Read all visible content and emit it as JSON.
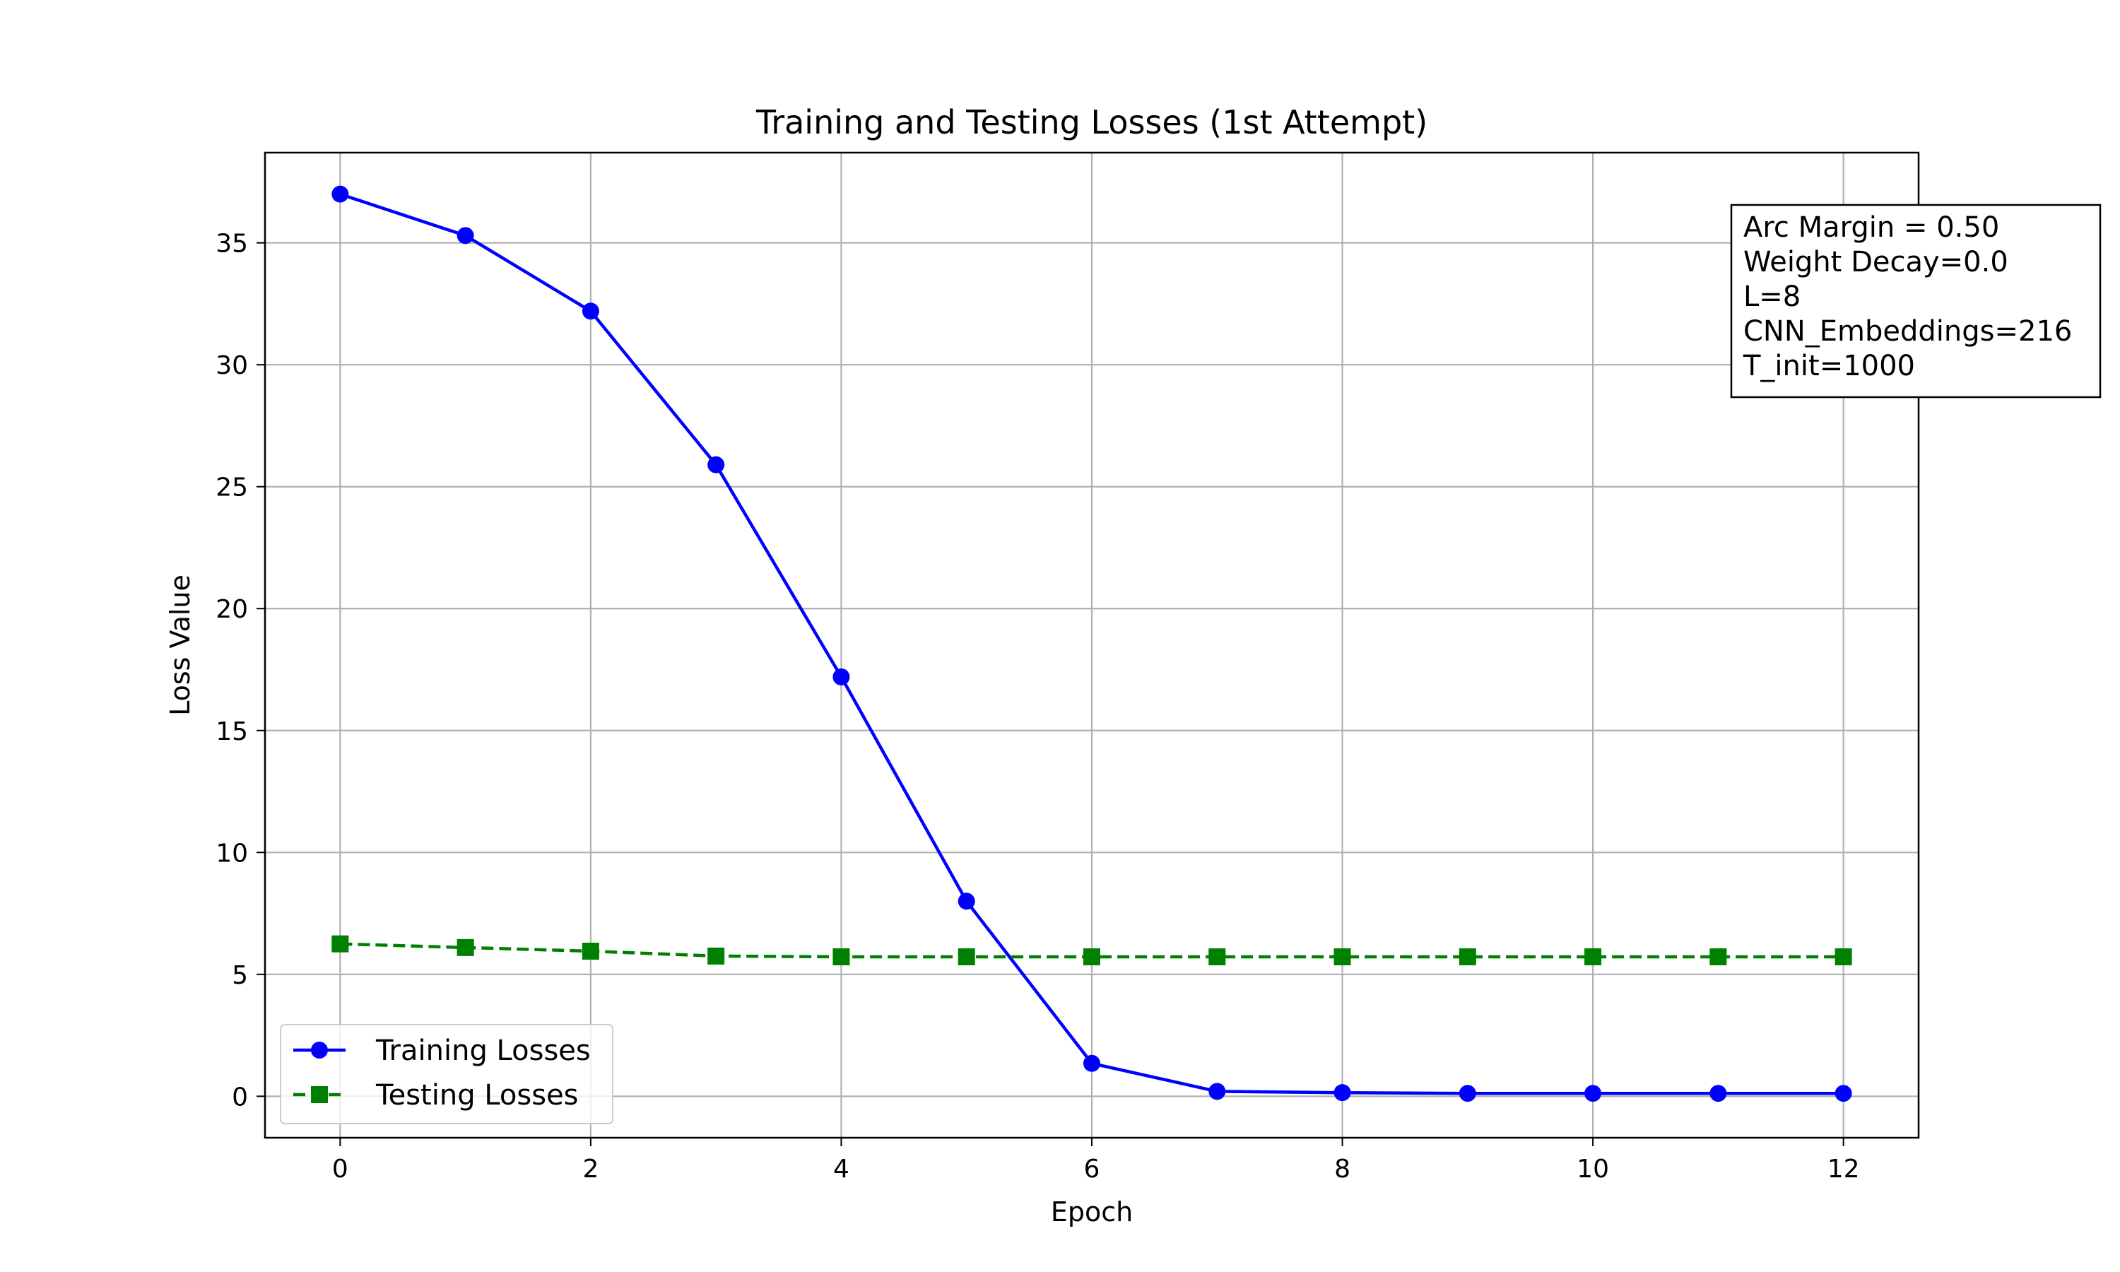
{
  "chart_data": {
    "type": "line",
    "title": "Training and Testing Losses (1st Attempt)",
    "xlabel": "Epoch",
    "ylabel": "Loss Value",
    "x": [
      0,
      1,
      2,
      3,
      4,
      5,
      6,
      7,
      8,
      9,
      10,
      11,
      12
    ],
    "xlim": [
      -0.6,
      12.6
    ],
    "ylim": [
      -1.7,
      38.7
    ],
    "xticks": [
      0,
      2,
      4,
      6,
      8,
      10,
      12
    ],
    "yticks": [
      0,
      5,
      10,
      15,
      20,
      25,
      30,
      35
    ],
    "grid": true,
    "legend_position": "lower-left",
    "series": [
      {
        "name": "Training Losses",
        "color": "#0000ff",
        "marker": "circle",
        "line_style": "solid",
        "values": [
          37.0,
          35.3,
          32.2,
          25.9,
          17.2,
          8.0,
          1.35,
          0.2,
          0.15,
          0.12,
          0.12,
          0.12,
          0.12
        ]
      },
      {
        "name": "Testing Losses",
        "color": "#008000",
        "marker": "square",
        "line_style": "dashed",
        "values": [
          6.25,
          6.1,
          5.95,
          5.75,
          5.72,
          5.72,
          5.72,
          5.72,
          5.72,
          5.72,
          5.72,
          5.72,
          5.72
        ]
      }
    ],
    "annotation": {
      "lines": [
        "Arc Margin = 0.50",
        "Weight Decay=0.0",
        "L=8",
        "CNN_Embeddings=216",
        "T_init=1000"
      ],
      "position": "top-right"
    }
  }
}
